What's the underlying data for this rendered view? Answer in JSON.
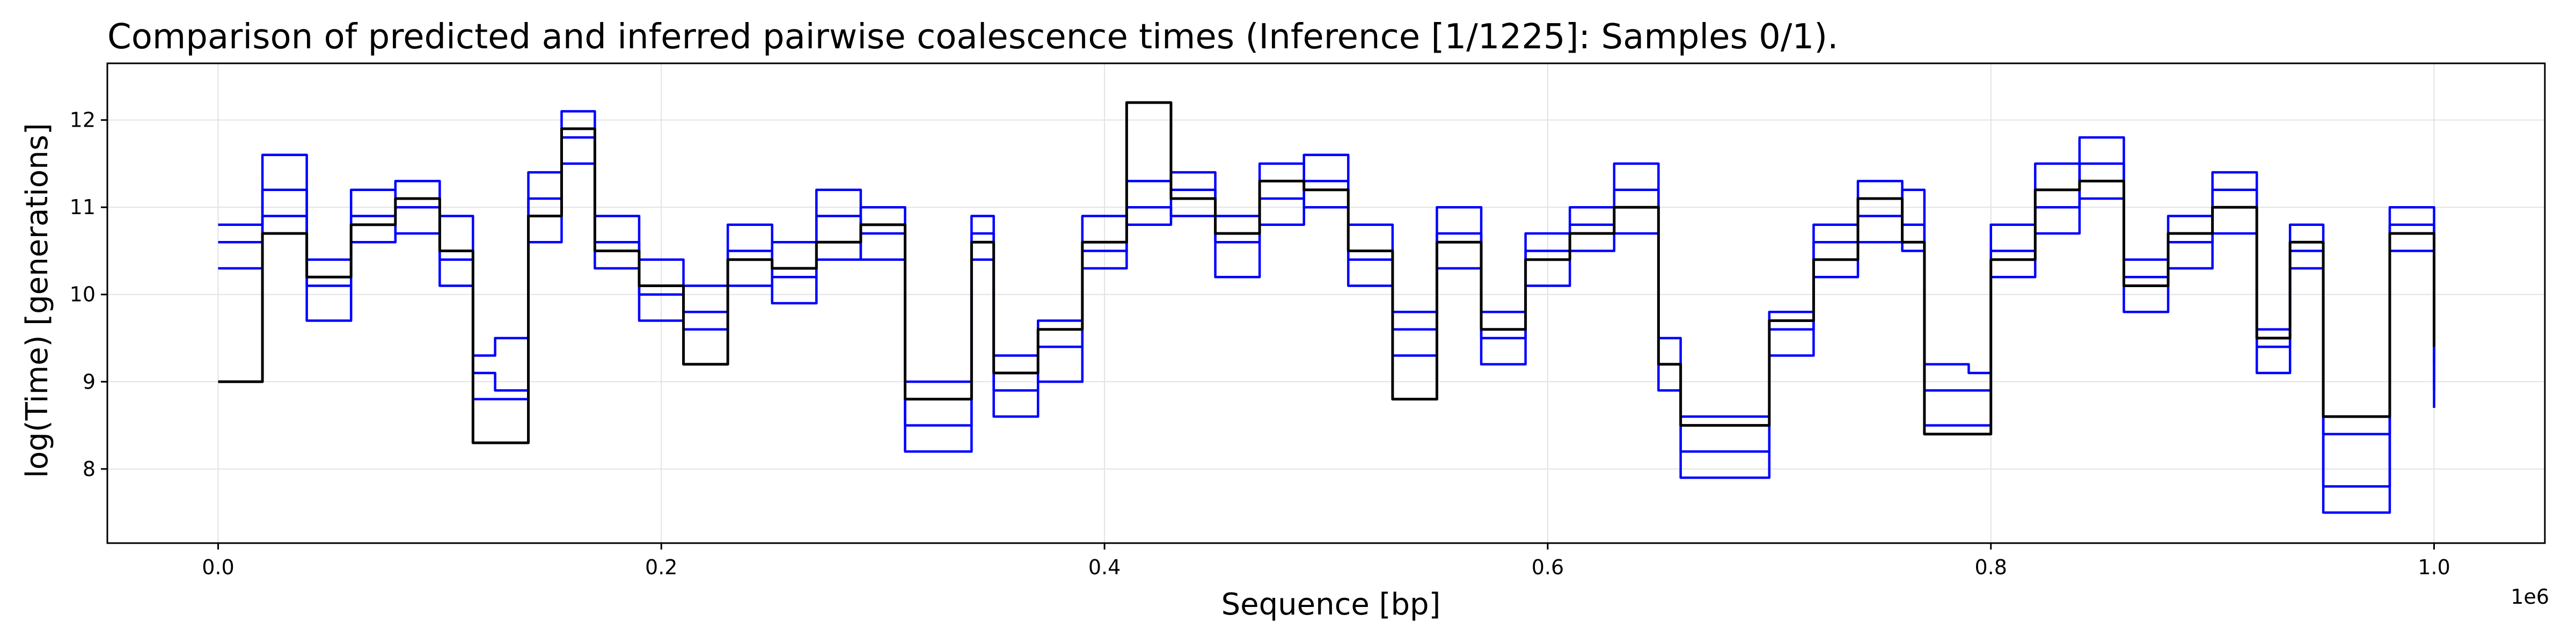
{
  "chart_data": {
    "type": "line",
    "title": "Comparison of predicted and inferred pairwise coalescence times (Inference [1/1225]: Samples 0/1).",
    "xlabel": "Sequence [bp]",
    "ylabel": "log(Time) [generations]",
    "x_scale_label": "1e6",
    "xlim": [
      -50000,
      1050000
    ],
    "ylim": [
      7.15,
      12.65
    ],
    "xticks": [
      0.0,
      0.2,
      0.4,
      0.6,
      0.8,
      1.0
    ],
    "yticks": [
      8,
      9,
      10,
      11,
      12
    ],
    "grid": true,
    "legend": "none",
    "colors": {
      "inferred": "#0000ff",
      "predicted": "#000000"
    },
    "series": [
      {
        "role": "inferred",
        "x": [
          0,
          20000,
          40000,
          60000,
          80000,
          100000,
          115000,
          125000,
          140000,
          155000,
          170000,
          190000,
          210000,
          230000,
          250000,
          270000,
          290000,
          310000,
          320000,
          340000,
          350000,
          370000,
          390000,
          410000,
          430000,
          450000,
          470000,
          490000,
          510000,
          530000,
          550000,
          570000,
          590000,
          610000,
          630000,
          650000,
          660000,
          690000,
          700000,
          720000,
          740000,
          760000,
          770000,
          790000,
          800000,
          820000,
          840000,
          860000,
          880000,
          900000,
          920000,
          935000,
          950000,
          965000,
          980000,
          1000000
        ],
        "y": [
          10.8,
          11.2,
          10.1,
          10.9,
          11.3,
          10.4,
          9.3,
          9.5,
          11.1,
          11.8,
          10.6,
          10.0,
          9.8,
          10.5,
          10.2,
          10.9,
          10.7,
          9.0,
          9.0,
          10.9,
          9.3,
          9.0,
          10.5,
          10.8,
          11.4,
          10.6,
          11.1,
          11.3,
          10.4,
          9.8,
          10.7,
          9.5,
          10.5,
          10.8,
          11.2,
          9.5,
          8.6,
          8.6,
          9.6,
          10.6,
          10.9,
          10.8,
          9.2,
          9.1,
          10.5,
          11.0,
          11.5,
          10.2,
          10.6,
          11.2,
          9.6,
          10.5,
          8.4,
          8.4,
          11.0,
          9.2
        ]
      },
      {
        "role": "inferred",
        "x": [
          0,
          20000,
          40000,
          60000,
          80000,
          100000,
          115000,
          125000,
          140000,
          155000,
          170000,
          190000,
          210000,
          230000,
          250000,
          270000,
          290000,
          310000,
          320000,
          340000,
          350000,
          370000,
          390000,
          410000,
          430000,
          450000,
          470000,
          490000,
          510000,
          530000,
          550000,
          570000,
          590000,
          610000,
          630000,
          650000,
          660000,
          690000,
          700000,
          720000,
          740000,
          760000,
          770000,
          790000,
          800000,
          820000,
          840000,
          860000,
          880000,
          900000,
          920000,
          935000,
          950000,
          965000,
          980000,
          1000000
        ],
        "y": [
          10.3,
          11.6,
          10.4,
          11.2,
          10.7,
          10.9,
          9.1,
          8.9,
          10.6,
          12.1,
          10.3,
          10.4,
          9.6,
          10.1,
          10.6,
          10.4,
          11.0,
          8.5,
          8.5,
          10.4,
          8.9,
          9.4,
          10.9,
          11.0,
          10.9,
          10.2,
          11.5,
          11.0,
          10.8,
          9.3,
          10.3,
          9.8,
          10.1,
          11.0,
          10.7,
          9.2,
          7.9,
          7.9,
          9.8,
          10.2,
          11.3,
          10.5,
          8.9,
          8.9,
          10.2,
          11.5,
          11.1,
          9.8,
          10.9,
          10.7,
          9.4,
          10.8,
          7.8,
          7.8,
          10.5,
          8.9
        ]
      },
      {
        "role": "inferred",
        "x": [
          0,
          20000,
          40000,
          60000,
          80000,
          100000,
          115000,
          125000,
          140000,
          155000,
          170000,
          190000,
          210000,
          230000,
          250000,
          270000,
          290000,
          310000,
          320000,
          340000,
          350000,
          370000,
          390000,
          410000,
          430000,
          450000,
          470000,
          490000,
          510000,
          530000,
          550000,
          570000,
          590000,
          610000,
          630000,
          650000,
          660000,
          690000,
          700000,
          720000,
          740000,
          760000,
          770000,
          790000,
          800000,
          820000,
          840000,
          860000,
          880000,
          900000,
          920000,
          935000,
          950000,
          965000,
          980000,
          1000000
        ],
        "y": [
          10.6,
          10.9,
          9.7,
          10.6,
          11.0,
          10.1,
          8.8,
          8.8,
          11.4,
          11.5,
          10.9,
          9.7,
          10.1,
          10.8,
          9.9,
          11.2,
          10.4,
          8.2,
          8.2,
          10.7,
          8.6,
          9.7,
          10.3,
          11.3,
          11.2,
          10.9,
          10.8,
          11.6,
          10.1,
          9.6,
          11.0,
          9.2,
          10.7,
          10.5,
          11.5,
          8.9,
          8.2,
          8.2,
          9.3,
          10.8,
          10.6,
          11.2,
          8.5,
          8.5,
          10.8,
          10.7,
          11.8,
          10.4,
          10.3,
          11.4,
          9.1,
          10.3,
          7.5,
          7.5,
          10.8,
          8.7
        ]
      },
      {
        "role": "predicted",
        "x": [
          0,
          20000,
          40000,
          60000,
          80000,
          100000,
          115000,
          125000,
          140000,
          155000,
          170000,
          190000,
          210000,
          230000,
          250000,
          270000,
          290000,
          310000,
          320000,
          340000,
          350000,
          370000,
          390000,
          410000,
          430000,
          450000,
          470000,
          490000,
          510000,
          530000,
          550000,
          570000,
          590000,
          610000,
          630000,
          650000,
          660000,
          690000,
          700000,
          720000,
          740000,
          760000,
          770000,
          790000,
          800000,
          820000,
          840000,
          860000,
          880000,
          900000,
          920000,
          935000,
          950000,
          965000,
          980000,
          1000000
        ],
        "y": [
          9.0,
          10.7,
          10.2,
          10.8,
          11.1,
          10.5,
          8.3,
          8.3,
          10.9,
          11.9,
          10.5,
          10.1,
          9.2,
          10.4,
          10.3,
          10.6,
          10.8,
          8.8,
          8.8,
          10.6,
          9.1,
          9.6,
          10.6,
          12.2,
          11.1,
          10.7,
          11.3,
          11.2,
          10.5,
          8.8,
          10.6,
          9.6,
          10.4,
          10.7,
          11.0,
          9.2,
          8.5,
          8.5,
          9.7,
          10.4,
          11.1,
          10.6,
          8.4,
          8.4,
          10.4,
          11.2,
          11.3,
          10.1,
          10.7,
          11.0,
          9.5,
          10.6,
          8.6,
          8.6,
          10.7,
          9.4
        ]
      }
    ]
  }
}
